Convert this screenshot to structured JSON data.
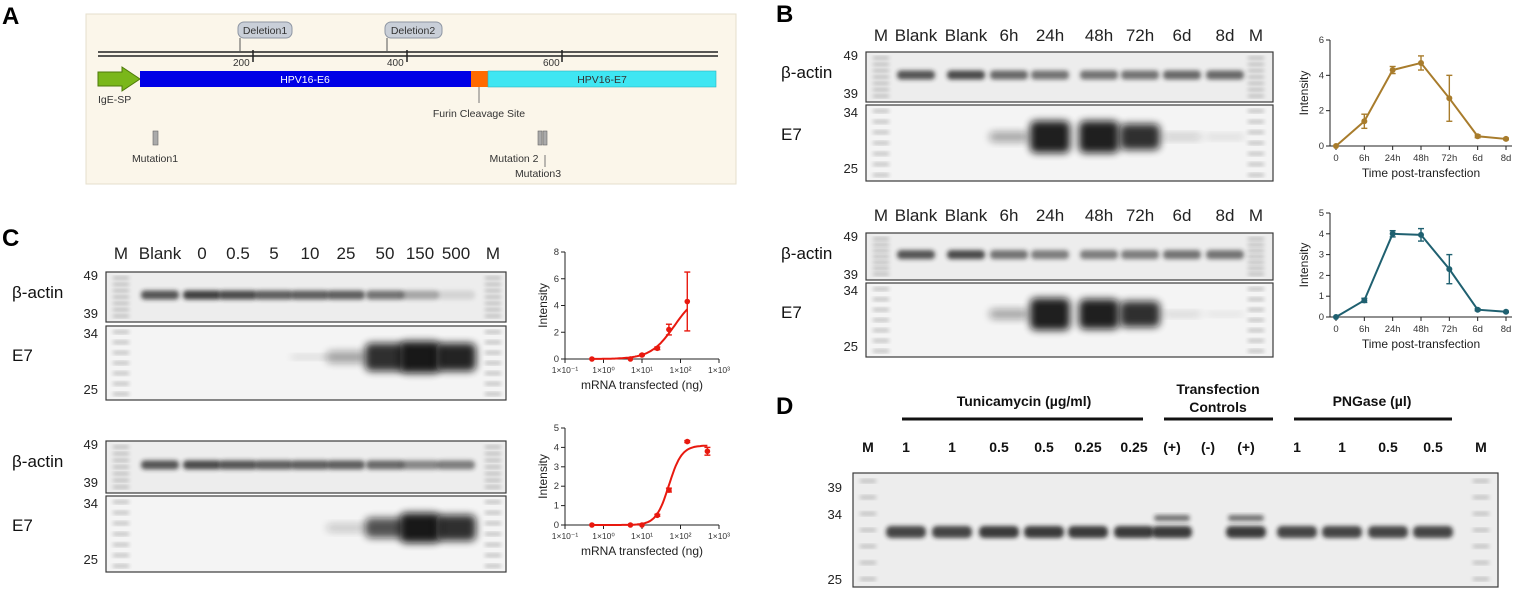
{
  "panels": {
    "a": "A",
    "b": "B",
    "c": "C",
    "d": "D"
  },
  "panel_a": {
    "deletion1": "Deletion1",
    "deletion2": "Deletion2",
    "ruler_ticks": [
      "200",
      "400",
      "600"
    ],
    "igesp": "IgE-SP",
    "e6": "HPV16-E6",
    "e7": "HPV16-E7",
    "furin": "Furin Cleavage Site",
    "mutation1": "Mutation1",
    "mutation2": "Mutation 2",
    "mutation3": "Mutation3",
    "colors": {
      "igesp": "#7ab71a",
      "e6": "#0000e6",
      "furin": "#ff6a00",
      "e7": "#3fe6f2",
      "background": "#fbf6ea"
    }
  },
  "panel_b": {
    "lanes": [
      "M",
      "Blank",
      "Blank",
      "6h",
      "24h",
      "48h",
      "72h",
      "6d",
      "8d",
      "M"
    ],
    "rows": [
      "β-actin",
      "E7"
    ],
    "mw_top": [
      "49",
      "39"
    ],
    "mw_bottom": [
      "34",
      "25"
    ]
  },
  "panel_c": {
    "lanes": [
      "M",
      "Blank",
      "0",
      "0.5",
      "5",
      "10",
      "25",
      "50",
      "150",
      "500",
      "M"
    ],
    "rows": [
      "β-actin",
      "E7"
    ],
    "mw_top": [
      "49",
      "39"
    ],
    "mw_bottom": [
      "34",
      "25"
    ]
  },
  "panel_d": {
    "group_tunicamycin": "Tunicamycin  (µg/ml)",
    "group_controls_1": "Transfection",
    "group_controls_2": "Controls",
    "group_pngase": "PNGase  (µl)",
    "lanes": [
      "M",
      "1",
      "1",
      "0.5",
      "0.5",
      "0.25",
      "0.25",
      "(+)",
      "(-)",
      "(+)",
      "1",
      "1",
      "0.5",
      "0.5",
      "M"
    ],
    "mw": [
      "39",
      "34",
      "25"
    ]
  },
  "chart_data": [
    {
      "id": "B-top",
      "type": "line",
      "categories": [
        "0",
        "6h",
        "24h",
        "48h",
        "72h",
        "6d",
        "8d"
      ],
      "values": [
        0,
        1.4,
        4.3,
        4.7,
        2.7,
        0.55,
        0.4
      ],
      "errors": [
        0,
        0.4,
        0.2,
        0.4,
        1.3,
        0.08,
        0.05
      ],
      "xlabel": "Time post-transfection",
      "ylabel": "Intensity",
      "ylim": [
        0,
        6
      ],
      "yticks": [
        "0",
        "2",
        "4",
        "6"
      ],
      "color": "#a87c2c"
    },
    {
      "id": "B-bottom",
      "type": "line",
      "categories": [
        "0",
        "6h",
        "24h",
        "48h",
        "72h",
        "6d",
        "8d"
      ],
      "values": [
        0,
        0.8,
        4.0,
        3.95,
        2.3,
        0.35,
        0.25
      ],
      "errors": [
        0,
        0.1,
        0.15,
        0.3,
        0.7,
        0.05,
        0.03
      ],
      "xlabel": "Time post-transfection",
      "ylabel": "Intensity",
      "ylim": [
        0,
        5
      ],
      "yticks": [
        "0",
        "1",
        "2",
        "3",
        "4",
        "5"
      ],
      "color": "#1f6070"
    },
    {
      "id": "C-top",
      "type": "scatter",
      "x": [
        0.5,
        5,
        10,
        25,
        50,
        150
      ],
      "y": [
        0,
        0,
        0.3,
        0.8,
        2.2,
        4.3
      ],
      "errors": [
        0,
        0,
        0.05,
        0.1,
        0.4,
        2.2
      ],
      "fit": "sigmoid",
      "xscale": "log",
      "xlim": [
        "1×10⁻¹",
        "1×10³"
      ],
      "xticks": [
        "1×10⁻¹",
        "1×10⁰",
        "1×10¹",
        "1×10²",
        "1×10³"
      ],
      "ylim": [
        0,
        8
      ],
      "yticks": [
        "0",
        "2",
        "4",
        "6",
        "8"
      ],
      "xlabel": "mRNA transfected (ng)",
      "ylabel": "Intensity",
      "color": "#e8190f"
    },
    {
      "id": "C-bottom",
      "type": "scatter",
      "x": [
        0.5,
        5,
        10,
        25,
        50,
        150,
        500
      ],
      "y": [
        0,
        0,
        0,
        0.5,
        1.8,
        4.3,
        3.8
      ],
      "errors": [
        0,
        0,
        0,
        0.05,
        0.1,
        0.05,
        0.2
      ],
      "fit": "sigmoid",
      "xscale": "log",
      "xlim": [
        "1×10⁻¹",
        "1×10³"
      ],
      "xticks": [
        "1×10⁻¹",
        "1×10⁰",
        "1×10¹",
        "1×10²",
        "1×10³"
      ],
      "ylim": [
        0,
        5
      ],
      "yticks": [
        "0",
        "1",
        "2",
        "3",
        "4",
        "5"
      ],
      "xlabel": "mRNA transfected (ng)",
      "ylabel": "Intensity",
      "color": "#e8190f"
    }
  ]
}
